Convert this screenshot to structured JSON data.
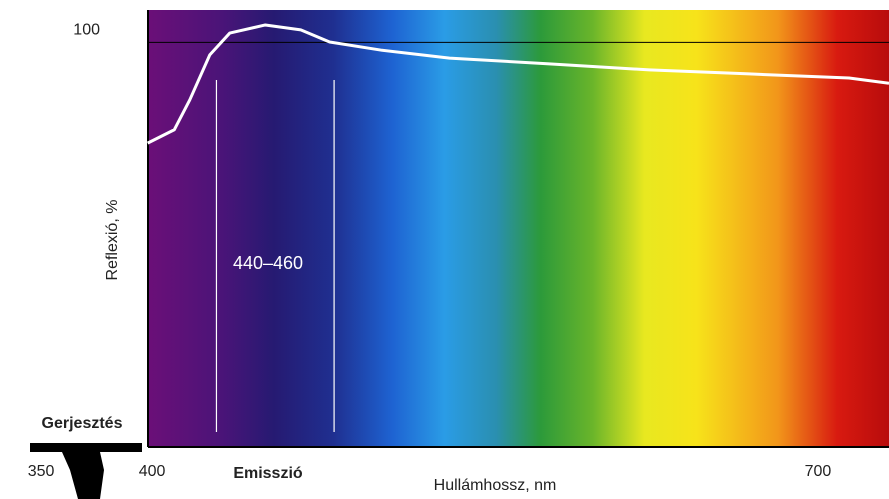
{
  "chart_data": {
    "type": "line",
    "ylabel": "Reflexió, %",
    "xlabel": "Hullámhossz, nm",
    "annotations": {
      "excitation": "Gerjesztés",
      "emission": "Emisszió",
      "band": "440–460"
    },
    "emission_band_lines": [
      429,
      482
    ],
    "x": [
      398,
      410,
      417,
      426,
      435,
      451,
      467,
      480,
      503,
      534,
      579,
      624,
      669,
      714,
      732
    ],
    "series": [
      {
        "color": "#ffffff",
        "values": [
          75.1,
          78.4,
          85.8,
          96.9,
          102.3,
          104.3,
          103.1,
          100.1,
          98.1,
          96.1,
          94.7,
          93.2,
          92.2,
          91.2,
          89.9
        ]
      }
    ],
    "xlim": [
      345,
      732
    ],
    "xticks": [
      350,
      400,
      700
    ],
    "ylim": [
      0,
      108
    ],
    "yticks": [
      100
    ],
    "grid": true
  }
}
